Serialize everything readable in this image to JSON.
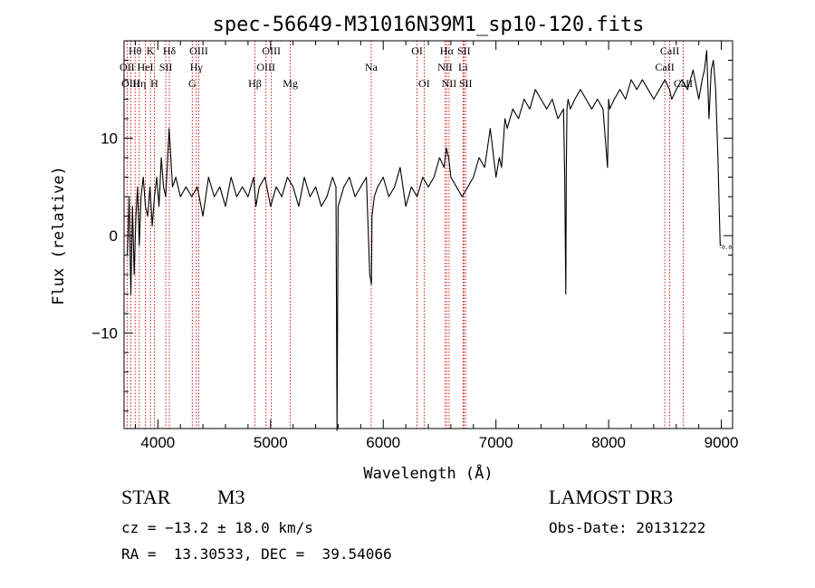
{
  "chart_data": {
    "type": "line",
    "title": "spec-56649-M31016N39M1_sp10-120.fits",
    "xlabel": "Wavelength (Å)",
    "ylabel": "Flux (relative)",
    "xlim": [
      3700,
      9100
    ],
    "ylim": [
      -19.8,
      20
    ],
    "x_ticks": [
      4000,
      5000,
      6000,
      7000,
      8000,
      9000
    ],
    "y_ticks": [
      10,
      0,
      -10
    ],
    "y_tick_labels": [
      "10",
      "0",
      "−10"
    ],
    "line_color": "#000000",
    "marker_color": "#cc0000",
    "series": [
      {
        "name": "flux",
        "x": [
          3730,
          3745,
          3760,
          3775,
          3790,
          3805,
          3820,
          3835,
          3850,
          3870,
          3890,
          3910,
          3930,
          3950,
          3970,
          3990,
          4010,
          4030,
          4050,
          4070,
          4100,
          4130,
          4160,
          4200,
          4250,
          4300,
          4350,
          4400,
          4450,
          4500,
          4550,
          4600,
          4650,
          4700,
          4750,
          4800,
          4850,
          4870,
          4900,
          4950,
          5000,
          5050,
          5100,
          5150,
          5200,
          5250,
          5300,
          5350,
          5400,
          5450,
          5500,
          5550,
          5580,
          5590,
          5600,
          5650,
          5700,
          5750,
          5800,
          5850,
          5880,
          5895,
          5900,
          5920,
          5950,
          6000,
          6050,
          6100,
          6150,
          6200,
          6250,
          6300,
          6350,
          6400,
          6450,
          6500,
          6540,
          6560,
          6580,
          6600,
          6650,
          6700,
          6750,
          6800,
          6850,
          6900,
          6950,
          7000,
          7030,
          7050,
          7080,
          7100,
          7150,
          7200,
          7250,
          7300,
          7350,
          7400,
          7450,
          7500,
          7550,
          7600,
          7610,
          7620,
          7625,
          7630,
          7640,
          7660,
          7700,
          7750,
          7800,
          7850,
          7900,
          7950,
          7990,
          8000,
          8010,
          8050,
          8100,
          8150,
          8200,
          8250,
          8300,
          8350,
          8400,
          8450,
          8500,
          8540,
          8560,
          8600,
          8650,
          8700,
          8750,
          8800,
          8830,
          8850,
          8870,
          8890,
          8910,
          8930,
          8950,
          8970,
          8990,
          9000
        ],
        "y": [
          -2,
          4,
          -6,
          3,
          -4,
          2,
          5,
          -1,
          4,
          6,
          3,
          2,
          5,
          1,
          4,
          6,
          3,
          8,
          5,
          4,
          11,
          5,
          6,
          4,
          5,
          4,
          5,
          2,
          6,
          4,
          5,
          3,
          6,
          4,
          5,
          4,
          6,
          3,
          5,
          6,
          3,
          5,
          4,
          6,
          5,
          3,
          6,
          4,
          5,
          3,
          4,
          6,
          5,
          -20,
          3,
          5,
          6,
          4,
          5,
          6,
          -4,
          -5,
          2,
          4,
          5,
          6,
          4,
          5,
          7,
          3,
          5,
          4,
          6,
          5,
          6,
          8,
          7,
          9,
          8,
          6,
          5,
          4,
          5,
          6,
          8,
          7,
          11,
          6,
          8,
          7,
          12,
          11,
          13,
          12,
          14,
          13,
          15,
          14,
          13,
          14,
          12,
          13,
          6,
          -6,
          7,
          13,
          14,
          13,
          14,
          15,
          14,
          13,
          14,
          13,
          7,
          14,
          13,
          14,
          15,
          14,
          16,
          15,
          16,
          15,
          14,
          15,
          16,
          15,
          14,
          15,
          16,
          15,
          17,
          14,
          16,
          17,
          19,
          12,
          17,
          18,
          15,
          8,
          -1,
          -1
        ],
        "endpoint_label": "-0.0"
      }
    ],
    "lines": [
      {
        "label": "Hθ",
        "x": 3798,
        "row": 0
      },
      {
        "label": "OII",
        "x": 3727,
        "row": 1
      },
      {
        "label": "OIII",
        "x": 3760,
        "row": 2
      },
      {
        "label": "Hη",
        "x": 3835,
        "row": 2
      },
      {
        "label": "HeI",
        "x": 3889,
        "row": 1
      },
      {
        "label": "K",
        "x": 3934,
        "row": 0
      },
      {
        "label": "H",
        "x": 3969,
        "row": 2
      },
      {
        "label": "SII",
        "x": 4070,
        "row": 1
      },
      {
        "label": "Hδ",
        "x": 4102,
        "row": 0
      },
      {
        "label": "OIII",
        "x": 4363,
        "row": 0
      },
      {
        "label": "Hγ",
        "x": 4341,
        "row": 1
      },
      {
        "label": "G",
        "x": 4305,
        "row": 2
      },
      {
        "label": "Hβ",
        "x": 4861,
        "row": 2
      },
      {
        "label": "OIII",
        "x": 5007,
        "row": 0
      },
      {
        "label": "OIII",
        "x": 4959,
        "row": 1
      },
      {
        "label": "Mg",
        "x": 5175,
        "row": 2
      },
      {
        "label": "Na",
        "x": 5893,
        "row": 1
      },
      {
        "label": "OI",
        "x": 6300,
        "row": 0
      },
      {
        "label": "OI",
        "x": 6363,
        "row": 2
      },
      {
        "label": "Hα",
        "x": 6563,
        "row": 0
      },
      {
        "label": "NII",
        "x": 6548,
        "row": 1
      },
      {
        "label": "NII",
        "x": 6584,
        "row": 2
      },
      {
        "label": "SII",
        "x": 6716,
        "row": 0
      },
      {
        "label": "Li",
        "x": 6708,
        "row": 1
      },
      {
        "label": "SII",
        "x": 6731,
        "row": 2
      },
      {
        "label": "CaII",
        "x": 8542,
        "row": 0
      },
      {
        "label": "CaII",
        "x": 8498,
        "row": 1
      },
      {
        "label": "CaII",
        "x": 8662,
        "row": 2
      }
    ]
  },
  "info": {
    "object_class": "STAR",
    "subclass": "M3",
    "survey": "LAMOST DR3",
    "cz": "cz = −13.2 ± 18.0 km/s",
    "obs_date": "Obs-Date: 20131222",
    "radec": "RA =  13.30533, DEC =  39.54066"
  }
}
